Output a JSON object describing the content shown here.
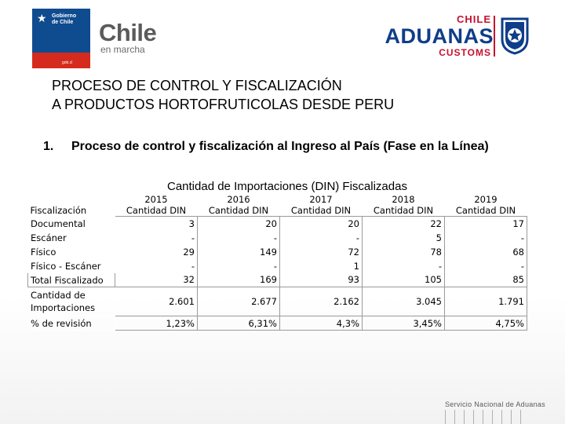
{
  "header": {
    "gov_logo": {
      "line1": "Gobierno",
      "line2": "de Chile",
      "tag": "gob.cl",
      "icon": "star-icon"
    },
    "brand": {
      "big": "Chile",
      "small": "en marcha"
    },
    "aduanas": {
      "line1": "CHILE",
      "line2": "ADUANAS",
      "line3": "CUSTOMS",
      "badge_icon": "customs-badge-icon"
    }
  },
  "title": {
    "line1": "PROCESO DE CONTROL Y FISCALIZACIÓN",
    "line2": "A PRODUCTOS HORTOFRUTICOLAS DESDE PERU"
  },
  "section": {
    "number": "1.",
    "text": "Proceso de control y fiscalización al Ingreso al País (Fase en la Línea)"
  },
  "table": {
    "caption": "Cantidad de Importaciones (DIN) Fiscalizadas",
    "header_label": "Fiscalización",
    "years": [
      "2015",
      "2016",
      "2017",
      "2018",
      "2019"
    ],
    "unit": "Cantidad DIN",
    "rows": [
      {
        "label": "Documental",
        "values": [
          "3",
          "20",
          "20",
          "22",
          "17"
        ]
      },
      {
        "label": "Escáner",
        "values": [
          "-",
          "-",
          "-",
          "5",
          "-"
        ]
      },
      {
        "label": "Físico",
        "values": [
          "29",
          "149",
          "72",
          "78",
          "68"
        ]
      },
      {
        "label": "Físico - Escáner",
        "values": [
          "-",
          "-",
          "1",
          "-",
          "-"
        ]
      },
      {
        "label": "Total Fiscalizado",
        "values": [
          "32",
          "169",
          "93",
          "105",
          "85"
        ]
      },
      {
        "label": "Cantidad de Importaciones",
        "values": [
          "2.601",
          "2.677",
          "2.162",
          "3.045",
          "1.791"
        ]
      },
      {
        "label": "% de revisión",
        "values": [
          "1,23%",
          "6,31%",
          "4,3%",
          "3,45%",
          "4,75%"
        ]
      }
    ]
  },
  "footer": {
    "text": "Servicio Nacional de Aduanas"
  },
  "colors": {
    "gov_blue": "#0f4b8f",
    "gov_red": "#d52b1e",
    "aduanas_blue": "#0f3d8a",
    "aduanas_red": "#c8102e"
  }
}
